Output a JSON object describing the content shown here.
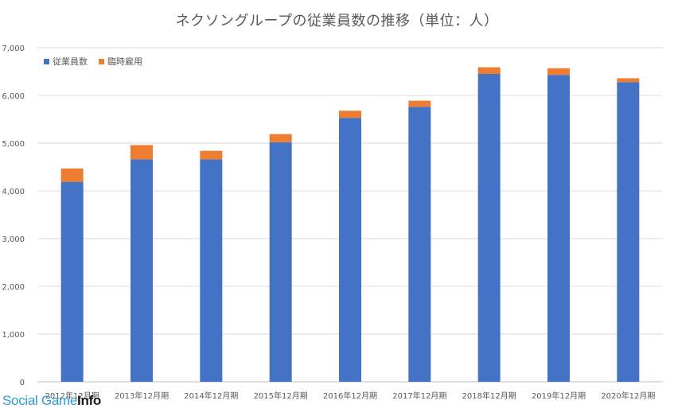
{
  "title": "ネクソングループの従業員数の推移（単位：人）",
  "legend": [
    {
      "label": "従業員数",
      "color": "#4472c4"
    },
    {
      "label": "臨時雇用",
      "color": "#ed7d31"
    }
  ],
  "watermark": {
    "text_light": "Social Game",
    "text_bold": "Info"
  },
  "chart_data": {
    "type": "bar",
    "stacked": true,
    "title": "ネクソングループの従業員数の推移（単位：人）",
    "xlabel": "",
    "ylabel": "",
    "categories": [
      "2012年12月期",
      "2013年12月期",
      "2014年12月期",
      "2015年12月期",
      "2016年12月期",
      "2017年12月期",
      "2018年12月期",
      "2019年12月期",
      "2020年12月期"
    ],
    "series": [
      {
        "name": "従業員数",
        "color": "#4472c4",
        "values": [
          4190,
          4660,
          4660,
          5020,
          5530,
          5760,
          6450,
          6430,
          6280
        ]
      },
      {
        "name": "臨時雇用",
        "color": "#ed7d31",
        "values": [
          280,
          300,
          180,
          170,
          150,
          130,
          140,
          140,
          80
        ]
      }
    ],
    "ylim": [
      0,
      7000
    ],
    "yticks": [
      0,
      1000,
      2000,
      3000,
      4000,
      5000,
      6000,
      7000
    ],
    "ytick_labels": [
      "0",
      "1,000",
      "2,000",
      "3,000",
      "4,000",
      "5,000",
      "6,000",
      "7,000"
    ],
    "grid": true,
    "legend_position": "top-left"
  }
}
